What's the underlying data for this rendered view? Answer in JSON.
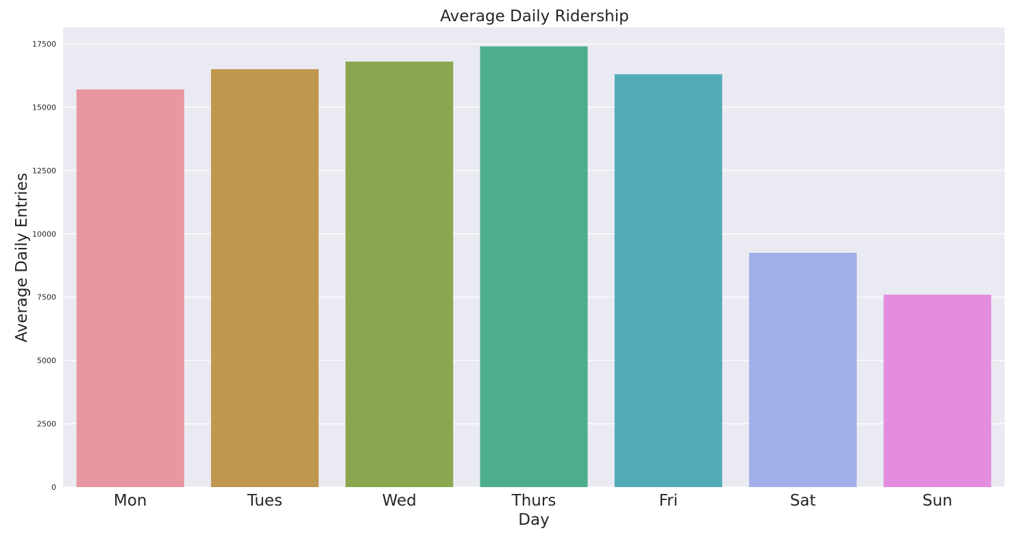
{
  "chart_data": {
    "type": "bar",
    "title": "Average Daily Ridership",
    "xlabel": "Day",
    "ylabel": "Average Daily Entries",
    "categories": [
      "Mon",
      "Tues",
      "Wed",
      "Thurs",
      "Fri",
      "Sat",
      "Sun"
    ],
    "values": [
      15700,
      16500,
      16800,
      17400,
      16300,
      9250,
      7600
    ],
    "colors": [
      "#e8969f",
      "#c0974f",
      "#8aa64e",
      "#4ead8c",
      "#53abb8",
      "#a2aee8",
      "#e48ddf"
    ],
    "ylim": [
      0,
      18150
    ],
    "yticks": [
      0,
      2500,
      5000,
      7500,
      10000,
      12500,
      15000,
      17500
    ],
    "grid": true,
    "legend": "none",
    "background": "#eaeaf2"
  }
}
